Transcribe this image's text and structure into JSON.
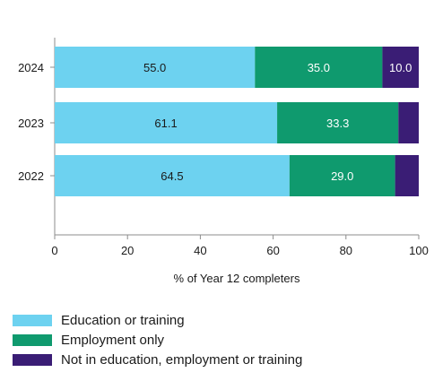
{
  "colors": {
    "education": "#6dd2f0",
    "employment": "#0f9a6e",
    "neet": "#3a1d75",
    "axis": "#8c8c8c",
    "text": "#1a1a1a",
    "label_dark": "#1a1a1a",
    "label_light": "#ffffff"
  },
  "chart_data": {
    "type": "bar",
    "orientation": "horizontal",
    "stacked": true,
    "categories": [
      "2024",
      "2023",
      "2022"
    ],
    "series": [
      {
        "name": "Education or training",
        "values": [
          55.0,
          61.1,
          64.5
        ],
        "labels": [
          "55.0",
          "61.1",
          "64.5"
        ]
      },
      {
        "name": "Employment only",
        "values": [
          35.0,
          33.3,
          29.0
        ],
        "labels": [
          "35.0",
          "33.3",
          "29.0"
        ]
      },
      {
        "name": "Not in education, employment or training",
        "values": [
          10.0,
          5.6,
          6.5
        ],
        "labels": [
          "10.0",
          "",
          ""
        ]
      }
    ],
    "xlabel": "% of Year 12 completers",
    "ylabel": "",
    "xlim": [
      0,
      100
    ],
    "xticks": [
      "0",
      "20",
      "40",
      "60",
      "80",
      "100"
    ],
    "grid": false,
    "legend_position": "bottom-left"
  }
}
